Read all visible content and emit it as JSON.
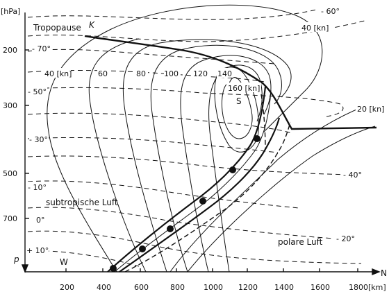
{
  "y_axis": {
    "unit": "[hPa]",
    "var": "p",
    "ticks": [
      "200",
      "300",
      "500",
      "700"
    ]
  },
  "x_axis": {
    "var": "N",
    "unit": "[km]",
    "ticks": [
      "200",
      "400",
      "600",
      "800",
      "1000",
      "1200",
      "1400",
      "1600",
      "1800"
    ]
  },
  "labels": {
    "tropopause": "Tropopause",
    "tropopause_k": "K",
    "west": "W",
    "south": "S",
    "subtropical_air": "subtropische Luft",
    "polar_air": "polare Luft"
  },
  "isotachs": [
    "40 [kn]",
    "60",
    "80",
    "100",
    "120",
    "140",
    "160 [kn]",
    "40 [kn]",
    "20 [kn]"
  ],
  "isotherms": [
    "- 70°",
    "- 50°",
    "- 30°",
    "- 10°",
    "0°",
    "+ 10°",
    "- 60°",
    "- 40°",
    "- 20°"
  ]
}
